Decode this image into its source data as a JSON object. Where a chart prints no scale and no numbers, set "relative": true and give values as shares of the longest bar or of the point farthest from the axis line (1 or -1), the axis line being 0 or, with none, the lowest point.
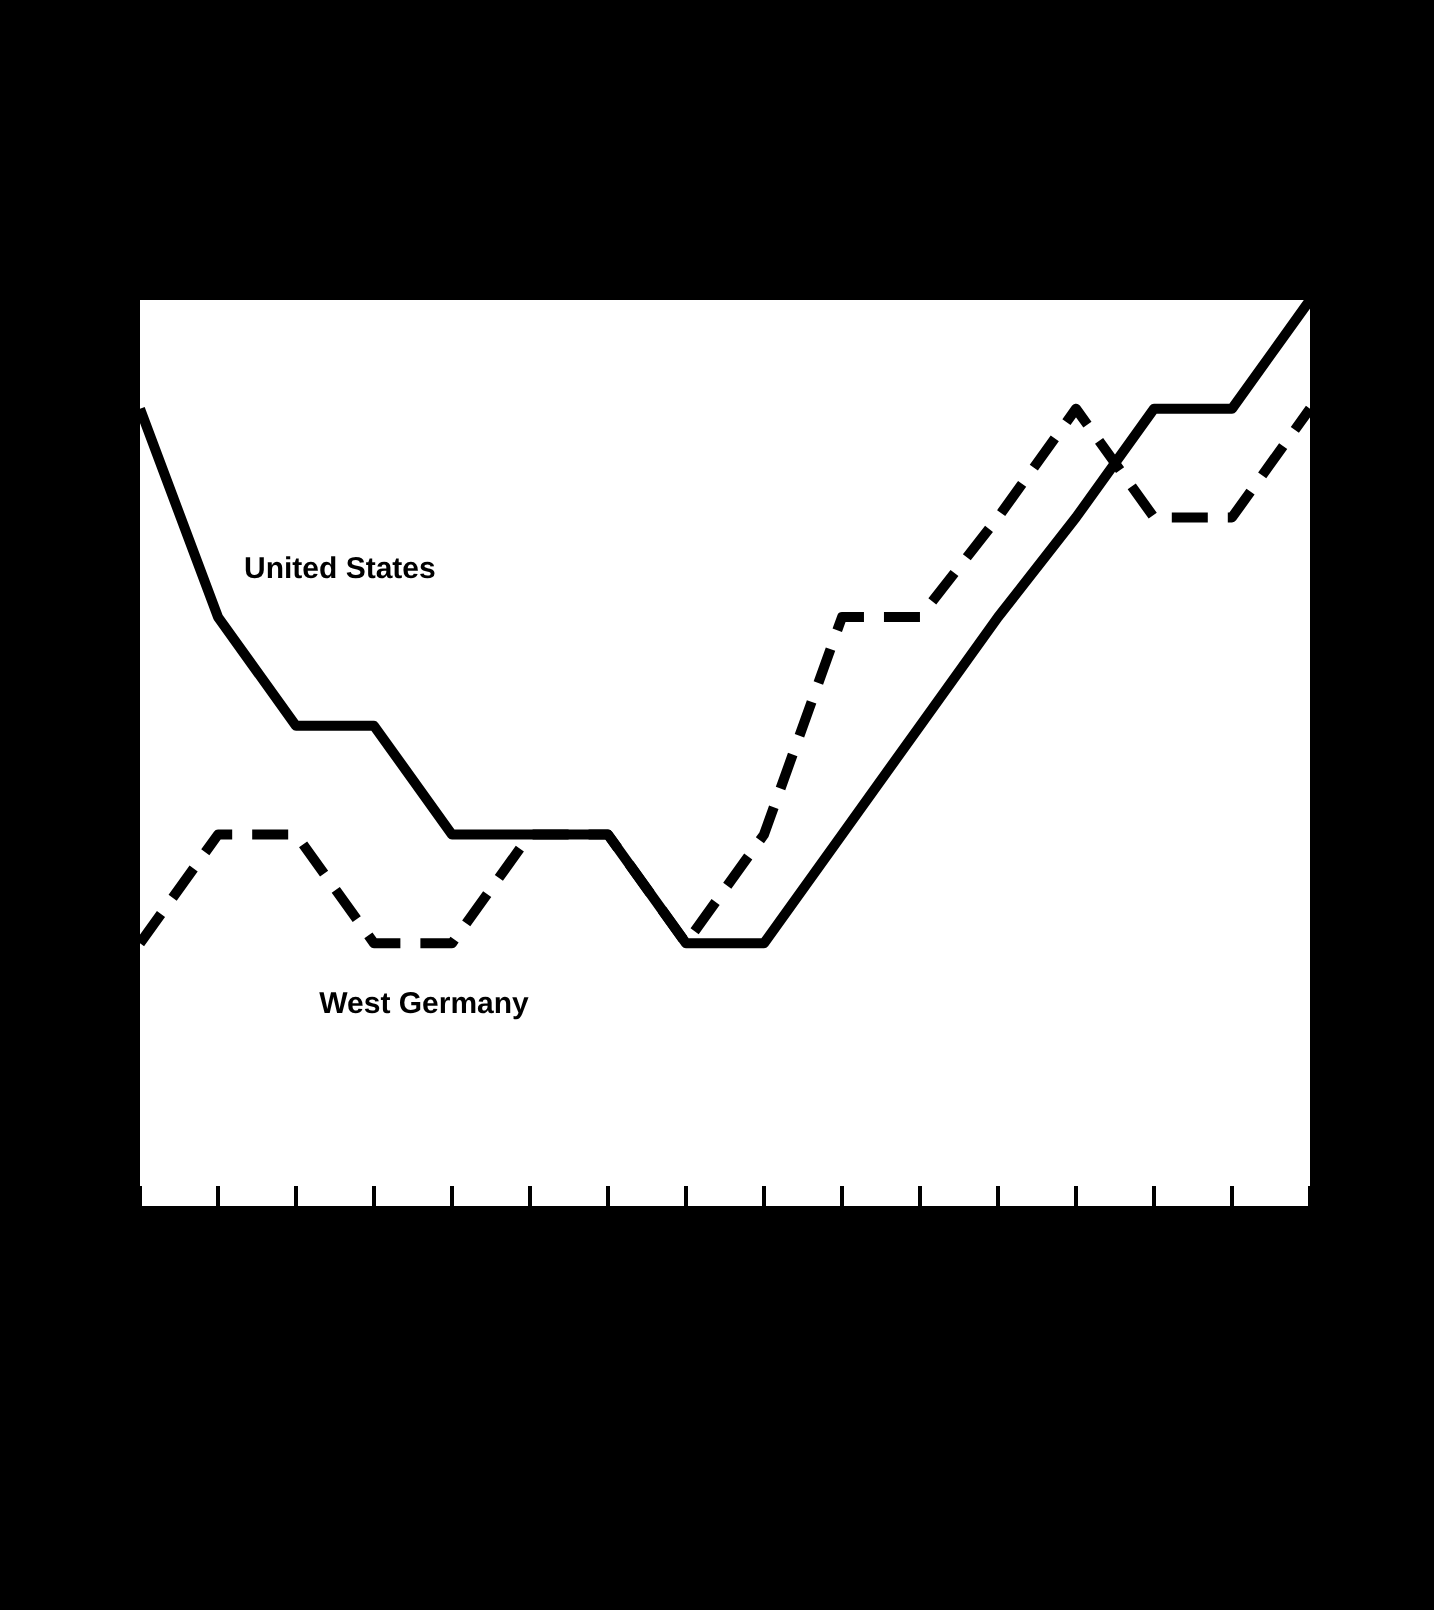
{
  "chart_data": {
    "type": "line",
    "relative": true,
    "categories": [
      null,
      null,
      null,
      null,
      null,
      null,
      null,
      null,
      null,
      null,
      null,
      null,
      null,
      null,
      null,
      null
    ],
    "series": [
      {
        "name": "United States",
        "color": "#000000",
        "line_style": "solid",
        "values": [
          0.88,
          0.65,
          0.53,
          0.53,
          0.41,
          0.41,
          0.41,
          0.29,
          0.29,
          0.41,
          0.53,
          0.65,
          0.76,
          0.88,
          0.88,
          1
        ]
      },
      {
        "name": "West Germany",
        "color": "#000000",
        "line_style": "dashed",
        "values": [
          0.29,
          0.41,
          0.41,
          0.29,
          0.29,
          0.41,
          0.41,
          0.29,
          0.41,
          0.65,
          0.65,
          0.76,
          0.88,
          0.76,
          0.76,
          0.88
        ]
      }
    ],
    "legend": false,
    "grid": false,
    "marker": "none"
  }
}
